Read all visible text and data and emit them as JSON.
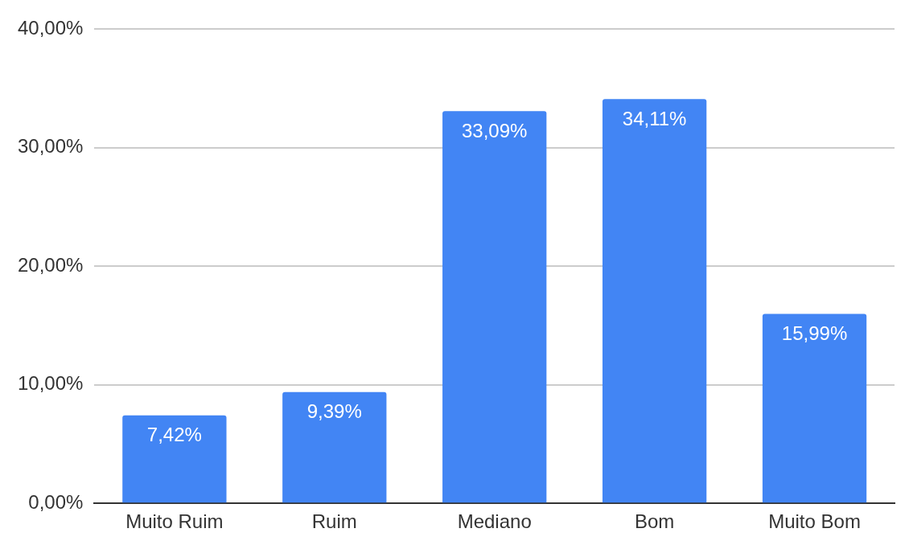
{
  "chart_data": {
    "type": "bar",
    "categories": [
      "Muito Ruim",
      "Ruim",
      "Mediano",
      "Bom",
      "Muito Bom"
    ],
    "values": [
      7.42,
      9.39,
      33.09,
      34.11,
      15.99
    ],
    "value_labels": [
      "7,42%",
      "9,39%",
      "33,09%",
      "34,11%",
      "15,99%"
    ],
    "color": "#4285f4",
    "ylim": [
      0,
      40
    ],
    "yticks": [
      {
        "value": 0,
        "label": "0,00%"
      },
      {
        "value": 10,
        "label": "10,00%"
      },
      {
        "value": 20,
        "label": "20,00%"
      },
      {
        "value": 30,
        "label": "30,00%"
      },
      {
        "value": 40,
        "label": "40,00%"
      }
    ],
    "grid": "y",
    "legend": false
  }
}
